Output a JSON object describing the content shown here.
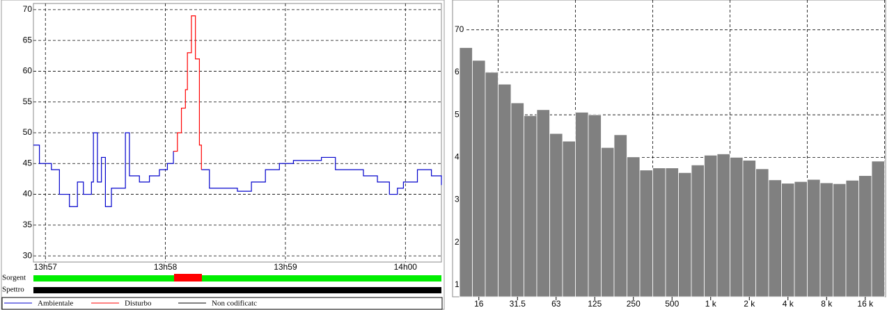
{
  "chart_data": [
    {
      "type": "line",
      "step": true,
      "x": [
        -6,
        -3,
        0,
        3,
        7,
        10,
        12,
        16,
        19,
        23,
        24,
        26,
        28,
        30,
        33,
        37,
        40,
        42,
        47,
        52,
        57,
        61,
        64,
        66,
        68,
        70,
        71,
        73,
        75,
        77,
        78,
        82,
        89,
        96,
        103,
        110,
        117,
        124,
        131,
        138,
        145,
        152,
        159,
        166,
        172,
        176,
        179,
        186,
        193,
        198
      ],
      "xlim": [
        -6,
        198
      ],
      "xticks": [
        {
          "value": 0,
          "label": "13h57"
        },
        {
          "value": 60,
          "label": "13h58"
        },
        {
          "value": 120,
          "label": "13h59"
        },
        {
          "value": 180,
          "label": "14h00"
        }
      ],
      "ylim": [
        29,
        71
      ],
      "yticks": [
        30,
        35,
        40,
        45,
        50,
        55,
        60,
        65,
        70
      ],
      "grid": true,
      "series": [
        {
          "name": "Ambientale",
          "color": "#0000cc",
          "values": [
            48,
            45,
            45,
            44,
            40,
            40,
            38,
            42,
            40,
            42,
            50,
            42,
            46,
            38,
            41,
            41,
            50,
            43,
            42,
            43,
            44,
            45,
            47,
            null,
            null,
            null,
            null,
            null,
            null,
            null,
            44,
            41,
            41,
            40.5,
            42,
            44,
            45,
            45.5,
            45.5,
            46,
            44,
            44,
            43,
            42,
            40,
            41,
            42,
            44,
            43,
            41.5
          ]
        },
        {
          "name": "Disturbo",
          "color": "#ff0000",
          "values": [
            null,
            null,
            null,
            null,
            null,
            null,
            null,
            null,
            null,
            null,
            null,
            null,
            null,
            null,
            null,
            null,
            null,
            null,
            null,
            null,
            null,
            null,
            47,
            50,
            54,
            57,
            63,
            69,
            62,
            48,
            44,
            null,
            null,
            null,
            null,
            null,
            null,
            null,
            null,
            null,
            null,
            null,
            null,
            null,
            null,
            null,
            null,
            null,
            null,
            null
          ]
        },
        {
          "name": "Non codificatc",
          "color": "#000000",
          "values": [
            null,
            null,
            null,
            null,
            null,
            null,
            null,
            null,
            null,
            null,
            null,
            null,
            null,
            null,
            null,
            null,
            null,
            null,
            null,
            null,
            null,
            null,
            null,
            null,
            null,
            null,
            null,
            null,
            null,
            null,
            null,
            null,
            null,
            null,
            null,
            null,
            null,
            null,
            null,
            null,
            null,
            null,
            null,
            null,
            null,
            null,
            null,
            null,
            null,
            null
          ]
        }
      ],
      "status_rows": [
        "Sorgent",
        "Spettro"
      ]
    },
    {
      "type": "bar",
      "color": "#808080",
      "categories": [
        null,
        "16",
        null,
        null,
        "31.5",
        null,
        null,
        "63",
        null,
        null,
        "125",
        null,
        null,
        "250",
        null,
        null,
        "500",
        null,
        null,
        "1 k",
        null,
        null,
        "2 k",
        null,
        null,
        "4 k",
        null,
        null,
        "8 k",
        null,
        null,
        "16 k",
        null
      ],
      "values": [
        65.8,
        62.8,
        60,
        57.2,
        52.8,
        49.8,
        51.2,
        45.6,
        43.8,
        50.6,
        50,
        42.3,
        45.3,
        40.1,
        37,
        37.5,
        37.5,
        36.4,
        38.2,
        40.5,
        40.8,
        40,
        39.3,
        37.3,
        34.7,
        33.9,
        34.3,
        34.8,
        34,
        33.8,
        34.6,
        35.7,
        39.1
      ],
      "ylim": [
        7.2,
        77
      ],
      "yticks": [
        10,
        20,
        30,
        40,
        50,
        60,
        70
      ],
      "grid": true
    }
  ]
}
